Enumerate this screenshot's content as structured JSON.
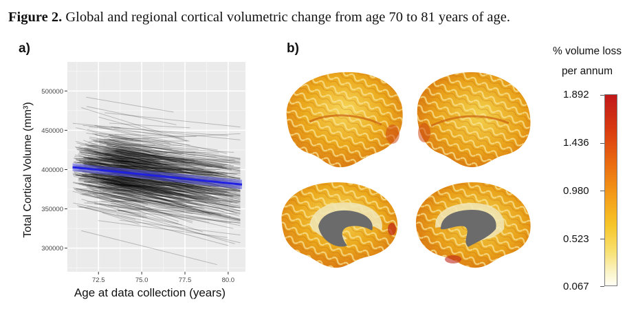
{
  "caption": {
    "label": "Figure 2.",
    "text": " Global and regional cortical volumetric change from age 70 to 81 years of age."
  },
  "panels": {
    "a_label": "a)",
    "b_label": "b)"
  },
  "chart_data": {
    "type": "line",
    "title": "",
    "xlabel": "Age at data collection (years)",
    "ylabel": "Total Cortical Volume (mm³)",
    "xlim": [
      70.7,
      81.0
    ],
    "ylim": [
      270000,
      537000
    ],
    "x_ticks": [
      72.5,
      75.0,
      77.5,
      80.0
    ],
    "x_tick_labels": [
      "72.5",
      "75.0",
      "77.5",
      "80.0"
    ],
    "y_ticks": [
      300000,
      350000,
      400000,
      450000,
      500000
    ],
    "y_tick_labels": [
      "300000",
      "350000",
      "400000",
      "450000",
      "500000"
    ],
    "grid": true,
    "individual_trajectories": {
      "description": "one line per participant",
      "color": "#000000",
      "approx_count": 560,
      "age_range": [
        71.0,
        80.7
      ],
      "volume_range": [
        277000,
        523000
      ],
      "typical_slope_per_year": -3500
    },
    "fit_line": {
      "color": "#2020e0",
      "ci_color": "#5a5ae8",
      "x": [
        71.0,
        80.8
      ],
      "y": [
        403000,
        381000
      ],
      "ci_half_width": [
        5000,
        6000
      ]
    }
  },
  "brain_map": {
    "views": [
      "lateral-left",
      "lateral-right",
      "medial-left",
      "medial-right"
    ],
    "legend": {
      "title_line1": "% volume loss",
      "title_line2": "per annum",
      "ticks": [
        "1.892",
        "1.436",
        "0.980",
        "0.523",
        "0.067"
      ],
      "min": 0.067,
      "max": 1.892,
      "colors": [
        "#c0181a",
        "#ea6b10",
        "#f7c528",
        "#fbf4c8",
        "#fffef4"
      ]
    }
  }
}
